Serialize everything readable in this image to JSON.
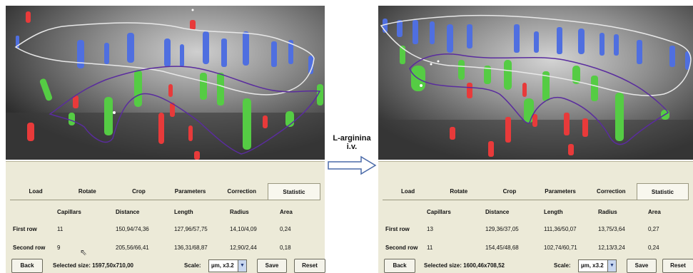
{
  "left": {
    "tabs": [
      "Load",
      "Rotate",
      "Crop",
      "Parameters",
      "Correction",
      "Statistic"
    ],
    "active_tab": "Statistic",
    "headers": [
      "Capillars",
      "Distance",
      "Length",
      "Radius",
      "Area"
    ],
    "rows": [
      {
        "label": "First row",
        "capillars": "11",
        "distance": "150,94/74,36",
        "length": "127,96/57,75",
        "radius": "14,10/4,09",
        "area": "0,24"
      },
      {
        "label": "Second row",
        "capillars": "9",
        "distance": "205,56/66,41",
        "length": "136,31/68,87",
        "radius": "12,90/2,44",
        "area": "0,18"
      }
    ],
    "back_label": "Back",
    "selected_size": "Selected size: 1597,50x710,00",
    "scale_label": "Scale:",
    "scale_value": "µm, x3.2",
    "save_label": "Save",
    "reset_label": "Reset"
  },
  "right": {
    "tabs": [
      "Load",
      "Rotate",
      "Crop",
      "Parameters",
      "Correction",
      "Statistic"
    ],
    "active_tab": "Statistic",
    "headers": [
      "Capillars",
      "Distance",
      "Length",
      "Radius",
      "Area"
    ],
    "rows": [
      {
        "label": "First row",
        "capillars": "13",
        "distance": "129,36/37,05",
        "length": "111,36/50,07",
        "radius": "13,75/3,64",
        "area": "0,27"
      },
      {
        "label": "Second row",
        "capillars": "11",
        "distance": "154,45/48,68",
        "length": "102,74/60,71",
        "radius": "12,13/3,24",
        "area": "0,24"
      }
    ],
    "back_label": "Back",
    "selected_size": "Selected size: 1600,46x708,52",
    "scale_label": "Scale:",
    "scale_value": "µm, x3.2",
    "save_label": "Save",
    "reset_label": "Reset"
  },
  "center": {
    "line1": "L-arginina",
    "line2": "i.v."
  },
  "icons": {
    "cursor": "mouse-pointer-icon",
    "dropdown": "chevron-down-icon",
    "arrow": "right-arrow-icon"
  },
  "colors": {
    "first_row_capillary": "#4f6fe0",
    "second_row_capillary": "#55cc44",
    "excluded_capillary": "#e83a3a",
    "first_row_contour": "#e8e8e8",
    "second_row_contour": "#5a2c9e",
    "control_background": "#ecead8"
  }
}
